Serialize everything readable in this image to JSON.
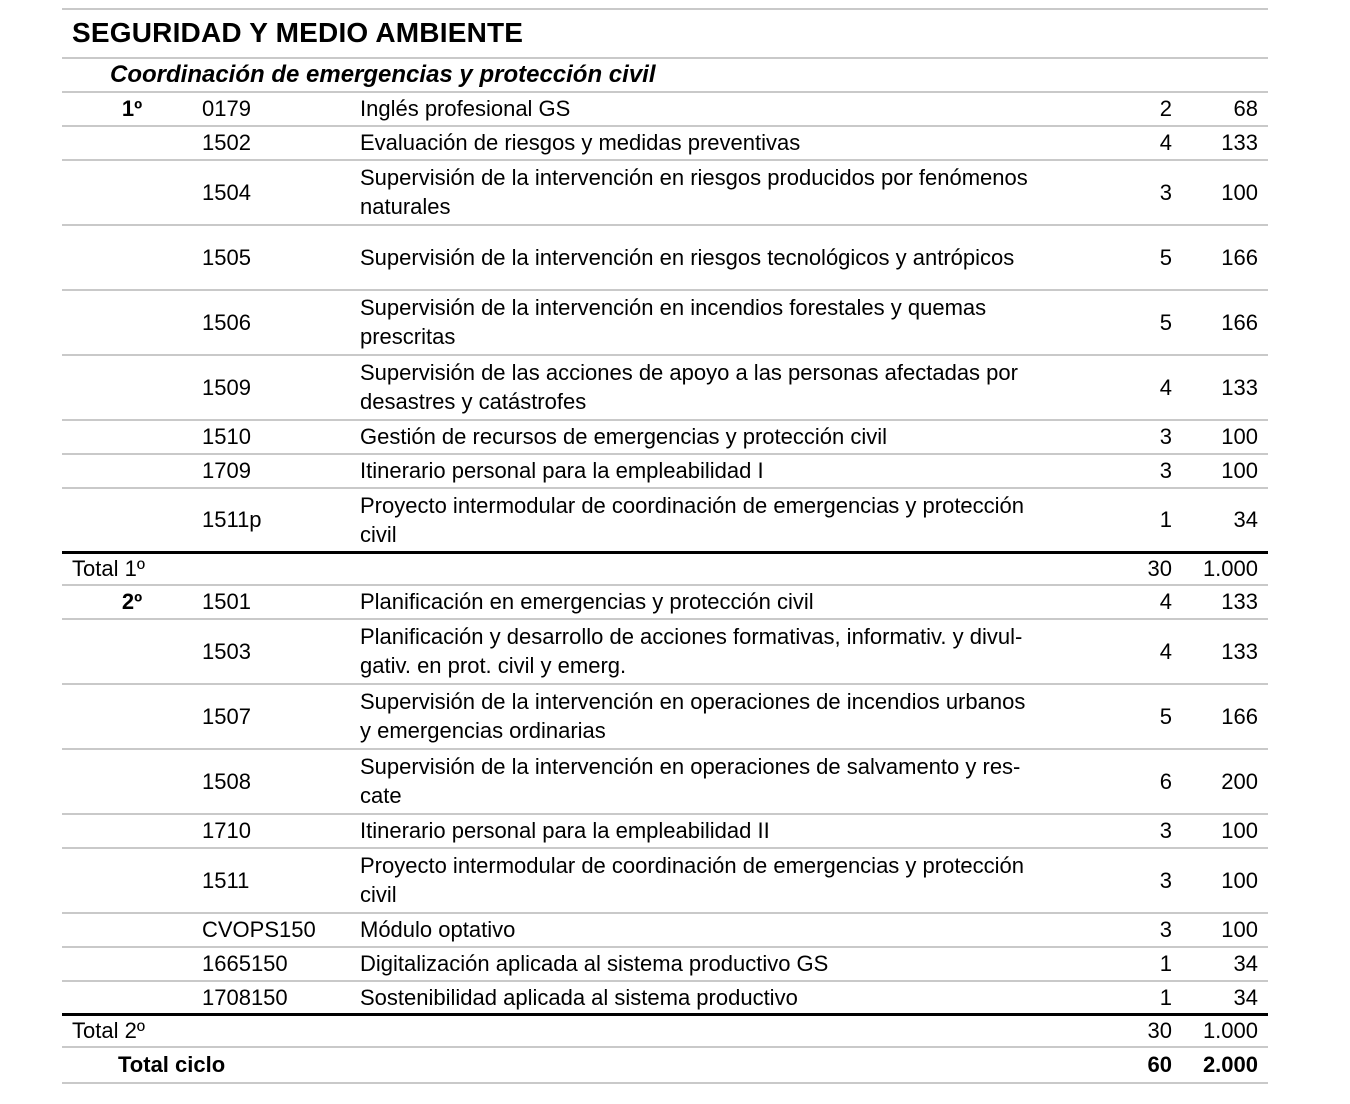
{
  "document": {
    "family_title": "SEGURIDAD Y MEDIO AMBIENTE",
    "cycle_title": "Coordinación de emergencias y protección civil",
    "colors": {
      "text": "#000000",
      "rule_light": "#c9c9c9",
      "rule_heavy": "#000000",
      "background": "#ffffff"
    },
    "rows": [
      {
        "type": "subject",
        "year": "1º",
        "code": "0179",
        "name": "Inglés profesional GS",
        "hours": "2",
        "total": "68",
        "tall": false
      },
      {
        "type": "subject",
        "year": "",
        "code": "1502",
        "name": "Evaluación de riesgos y medidas preventivas",
        "hours": "4",
        "total": "133",
        "tall": false
      },
      {
        "type": "subject",
        "year": "",
        "code": "1504",
        "name": "Supervisión de la intervención en riesgos producidos por fenómenos\nnaturales",
        "hours": "3",
        "total": "100",
        "tall": true
      },
      {
        "type": "subject",
        "year": "",
        "code": "1505",
        "name": "Supervisión de la intervención en riesgos tecnológicos y antrópicos",
        "hours": "5",
        "total": "166",
        "tall": true
      },
      {
        "type": "subject",
        "year": "",
        "code": "1506",
        "name": "Supervisión de la intervención en incendios forestales y quemas\nprescritas",
        "hours": "5",
        "total": "166",
        "tall": true
      },
      {
        "type": "subject",
        "year": "",
        "code": "1509",
        "name": "Supervisión de las acciones de apoyo a las personas afectadas por\ndesastres y catástrofes",
        "hours": "4",
        "total": "133",
        "tall": true
      },
      {
        "type": "subject",
        "year": "",
        "code": "1510",
        "name": "Gestión de recursos de emergencias y protección civil",
        "hours": "3",
        "total": "100",
        "tall": false
      },
      {
        "type": "subject",
        "year": "",
        "code": "1709",
        "name": "Itinerario personal para la empleabilidad I",
        "hours": "3",
        "total": "100",
        "tall": false
      },
      {
        "type": "subject",
        "year": "",
        "code": "1511p",
        "name": "Proyecto intermodular de coordinación de emergencias y protección\ncivil",
        "hours": "1",
        "total": "34",
        "tall": true,
        "rule_below": "thick"
      },
      {
        "type": "total",
        "label": "Total 1º",
        "hours": "30",
        "total": "1.000"
      },
      {
        "type": "subject",
        "year": "2º",
        "code": "1501",
        "name": "Planificación en emergencias y protección civil",
        "hours": "4",
        "total": "133",
        "tall": false
      },
      {
        "type": "subject",
        "year": "",
        "code": "1503",
        "name": "Planificación y desarrollo de acciones formativas, informativ. y divul-\ngativ. en prot. civil y emerg.",
        "hours": "4",
        "total": "133",
        "tall": true
      },
      {
        "type": "subject",
        "year": "",
        "code": "1507",
        "name": "Supervisión de la intervención en operaciones de incendios urbanos\ny emergencias ordinarias",
        "hours": "5",
        "total": "166",
        "tall": true
      },
      {
        "type": "subject",
        "year": "",
        "code": "1508",
        "name": "Supervisión de la intervención en operaciones de salvamento y res-\ncate",
        "hours": "6",
        "total": "200",
        "tall": true
      },
      {
        "type": "subject",
        "year": "",
        "code": "1710",
        "name": "Itinerario personal para la empleabilidad II",
        "hours": "3",
        "total": "100",
        "tall": false
      },
      {
        "type": "subject",
        "year": "",
        "code": "1511",
        "name": "Proyecto intermodular de coordinación de emergencias y protección\ncivil",
        "hours": "3",
        "total": "100",
        "tall": true
      },
      {
        "type": "subject",
        "year": "",
        "code": "CVOPS150",
        "name": "Módulo optativo",
        "hours": "3",
        "total": "100",
        "tall": false
      },
      {
        "type": "subject",
        "year": "",
        "code": "1665150",
        "name": "Digitalización aplicada al sistema productivo GS",
        "hours": "1",
        "total": "34",
        "tall": false
      },
      {
        "type": "subject",
        "year": "",
        "code": "1708150",
        "name": "Sostenibilidad aplicada al sistema productivo",
        "hours": "1",
        "total": "34",
        "tall": false,
        "rule_below": "thick"
      },
      {
        "type": "total",
        "label": "Total 2º",
        "hours": "30",
        "total": "1.000"
      },
      {
        "type": "total_cycle",
        "label": "Total ciclo",
        "hours": "60",
        "total": "2.000"
      }
    ]
  }
}
